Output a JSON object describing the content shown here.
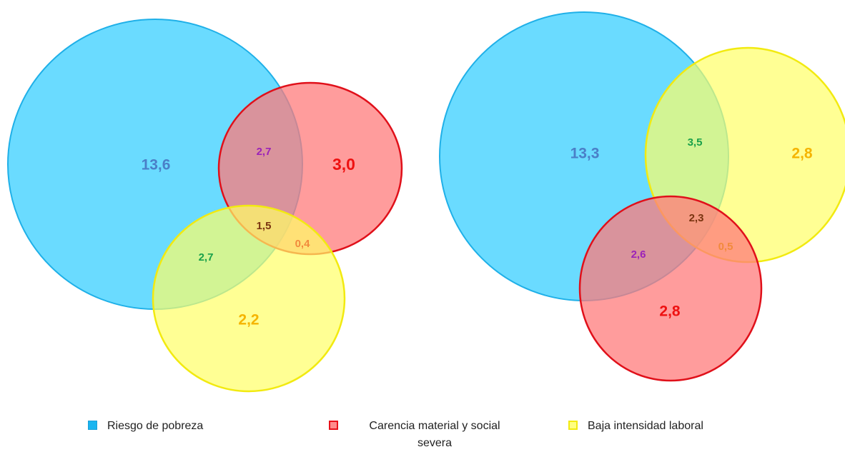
{
  "diagrams": [
    {
      "regions": {
        "riesgo_only": "13,6",
        "riesgo_carencia": "2,7",
        "carencia_only": "3,0",
        "all_three": "1,5",
        "riesgo_baja": "2,7",
        "carencia_baja": "0,4",
        "baja_only": "2,2"
      }
    },
    {
      "regions": {
        "riesgo_only": "13,3",
        "riesgo_baja": "3,5",
        "baja_only": "2,8",
        "all_three": "2,3",
        "riesgo_carencia": "2,6",
        "carencia_baja": "0,5",
        "carencia_only": "2,8"
      }
    }
  ],
  "legend": [
    {
      "label": "Riesgo de pobreza",
      "color": "#1ab5f0"
    },
    {
      "label": "Carencia material y social severa",
      "color": "#e8121a"
    },
    {
      "label": "Baja intensidad laboral",
      "color": "#ffff33"
    }
  ],
  "colors": {
    "blue_fill": "#55d6ff",
    "blue_stroke": "#1fb0e8",
    "red_fill": "#ff7b7b",
    "red_stroke": "#e0101a",
    "yellow_fill": "#ffff66",
    "yellow_stroke": "#f2ea10",
    "label_blue": "#4a7fc8",
    "label_red": "#ee1111",
    "label_orange": "#f5b400",
    "label_purple": "#9b22b8",
    "label_green": "#19a04a",
    "label_brown": "#7a3410",
    "label_light_orange": "#f28a3c"
  }
}
